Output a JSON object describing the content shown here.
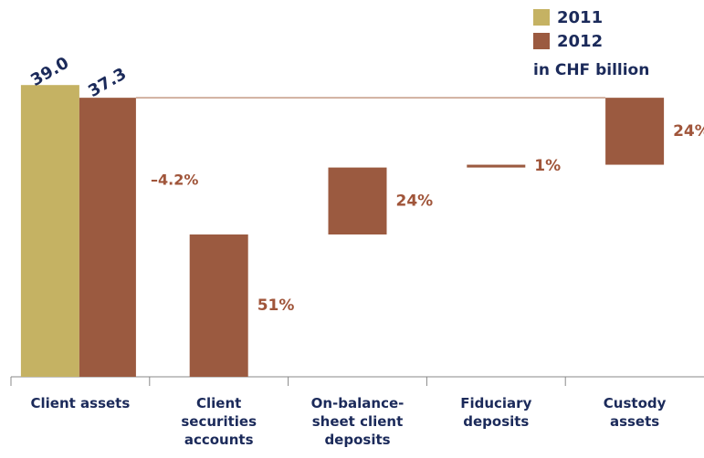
{
  "chart_data": {
    "type": "waterfall",
    "categories": [
      "Client assets",
      "Client securities accounts",
      "On-balance-sheet client deposits",
      "Fiduciary deposits",
      "Custody assets"
    ],
    "series": [
      {
        "name": "2011",
        "color": "#c5b263",
        "values": [
          39.0,
          null,
          null,
          null,
          null
        ],
        "value_labels": [
          "39.0",
          null,
          null,
          null,
          null
        ]
      },
      {
        "name": "2012",
        "color": "#9b5a40",
        "values": [
          37.3,
          null,
          null,
          null,
          null
        ],
        "value_labels": [
          "37.3",
          null,
          null,
          null,
          null
        ]
      }
    ],
    "segments": {
      "values": [
        null,
        51,
        24,
        1,
        24
      ],
      "value_labels": [
        null,
        "51%",
        "24%",
        "1%",
        "24%"
      ]
    },
    "change_label": "–4.2%",
    "unit_note": "in CHF billion",
    "ylim": [
      0,
      45
    ]
  }
}
